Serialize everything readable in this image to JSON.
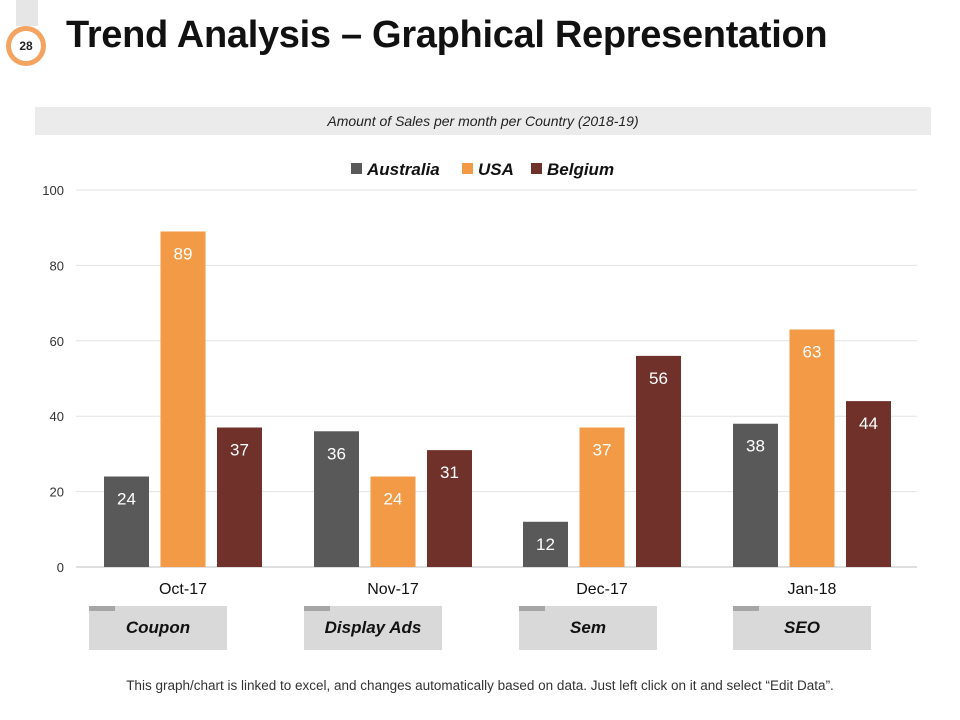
{
  "page": {
    "number": "28",
    "title": "Trend Analysis – Graphical Representation",
    "footer": "This graph/chart is linked to excel, and changes automatically based on data. Just left click on it and select “Edit Data”."
  },
  "categories_boxes": [
    "Coupon",
    "Display Ads",
    "Sem",
    "SEO"
  ],
  "chart_data": {
    "type": "bar",
    "title": "Amount of Sales per month per Country (2018-19)",
    "categories": [
      "Oct-17",
      "Nov-17",
      "Dec-17",
      "Jan-18"
    ],
    "series": [
      {
        "name": "Australia",
        "values": [
          24,
          36,
          12,
          38
        ],
        "color": "#595959"
      },
      {
        "name": "USA",
        "values": [
          89,
          24,
          37,
          63
        ],
        "color": "#f29a45"
      },
      {
        "name": "Belgium",
        "values": [
          37,
          31,
          56,
          44
        ],
        "color": "#70312b"
      }
    ],
    "ylim": [
      0,
      100
    ],
    "yticks": [
      0,
      20,
      40,
      60,
      80,
      100
    ],
    "xlabel": "",
    "ylabel": "",
    "grid": true,
    "legend": "top-center"
  }
}
